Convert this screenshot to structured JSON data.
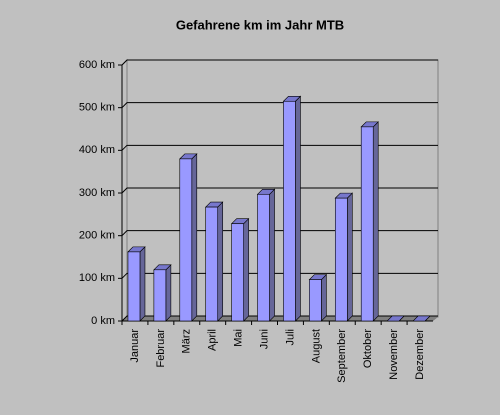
{
  "chart_data": {
    "type": "bar",
    "title": "Gefahrene km im Jahr MTB",
    "categories": [
      "Januar",
      "Februar",
      "März",
      "April",
      "Mai",
      "Juni",
      "Juli",
      "August",
      "September",
      "Oktober",
      "November",
      "Dezember"
    ],
    "values": [
      162,
      120,
      380,
      267,
      228,
      297,
      515,
      97,
      288,
      455,
      0,
      0
    ],
    "color": "#9999ff",
    "ylim": [
      0,
      600
    ],
    "yticks": [
      {
        "value": 0,
        "label": "0 km"
      },
      {
        "value": 100,
        "label": "100 km"
      },
      {
        "value": 200,
        "label": "200 km"
      },
      {
        "value": 300,
        "label": "300 km"
      },
      {
        "value": 400,
        "label": "400 km"
      },
      {
        "value": 500,
        "label": "500 km"
      },
      {
        "value": 600,
        "label": "600 km"
      }
    ],
    "grid": true
  }
}
